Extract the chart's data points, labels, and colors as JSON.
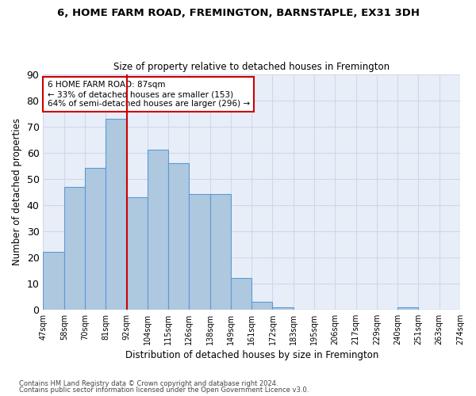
{
  "title1": "6, HOME FARM ROAD, FREMINGTON, BARNSTAPLE, EX31 3DH",
  "title2": "Size of property relative to detached houses in Fremington",
  "xlabel": "Distribution of detached houses by size in Fremington",
  "ylabel": "Number of detached properties",
  "bar_values": [
    22,
    47,
    54,
    73,
    43,
    61,
    56,
    44,
    44,
    12,
    3,
    1,
    0,
    0,
    0,
    0,
    0,
    1,
    0,
    0
  ],
  "categories": [
    "47sqm",
    "58sqm",
    "70sqm",
    "81sqm",
    "92sqm",
    "104sqm",
    "115sqm",
    "126sqm",
    "138sqm",
    "149sqm",
    "161sqm",
    "172sqm",
    "183sqm",
    "195sqm",
    "206sqm",
    "217sqm",
    "229sqm",
    "240sqm",
    "251sqm",
    "263sqm",
    "274sqm"
  ],
  "bar_color": "#aec8e0",
  "bar_edge_color": "#5b9bd5",
  "grid_color": "#d0d8e8",
  "background_color": "#e8eef8",
  "vline_x": 3.5,
  "vline_color": "#cc0000",
  "annotation_text": "6 HOME FARM ROAD: 87sqm\n← 33% of detached houses are smaller (153)\n64% of semi-detached houses are larger (296) →",
  "annotation_box_color": "#ffffff",
  "annotation_box_edge": "#cc0000",
  "ylim": [
    0,
    90
  ],
  "yticks": [
    0,
    10,
    20,
    30,
    40,
    50,
    60,
    70,
    80,
    90
  ],
  "footer1": "Contains HM Land Registry data © Crown copyright and database right 2024.",
  "footer2": "Contains public sector information licensed under the Open Government Licence v3.0."
}
